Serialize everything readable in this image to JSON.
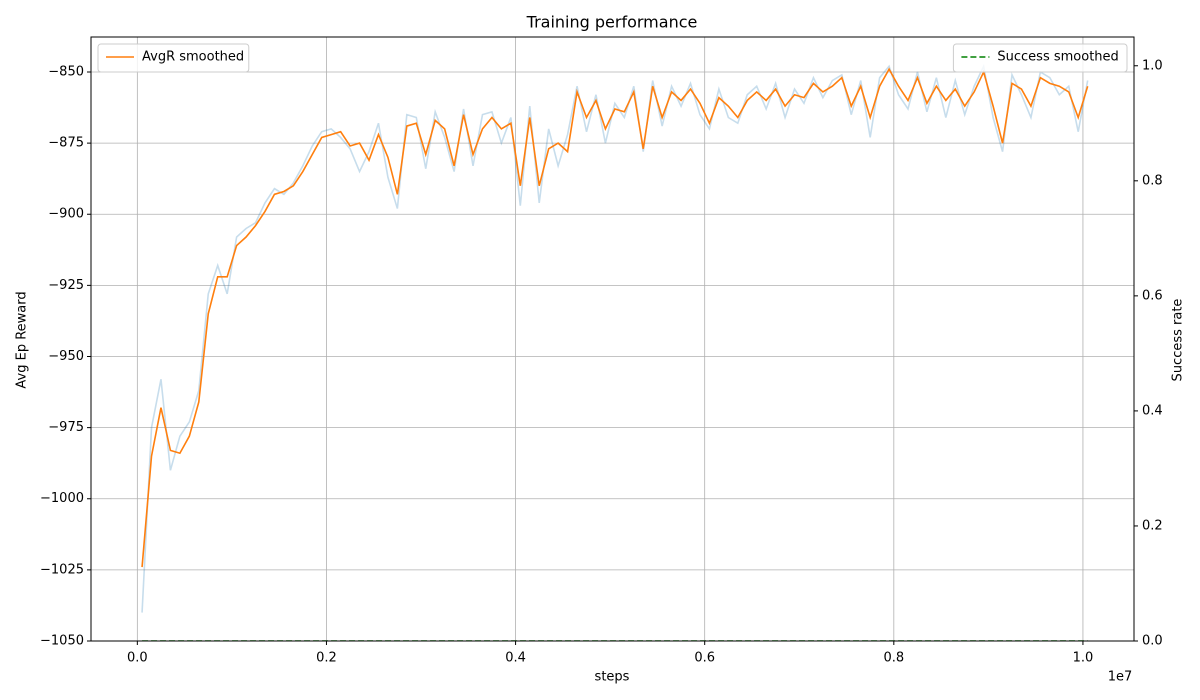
{
  "chart_data": {
    "type": "line",
    "title": "Training performance",
    "xlabel": "steps",
    "ylabel": "Avg Ep Reward",
    "y2label": "Success rate",
    "x_offset_label": "1e7",
    "x": [
      0.005,
      0.015,
      0.025,
      0.035,
      0.045,
      0.055,
      0.065,
      0.075,
      0.085,
      0.095,
      0.105,
      0.115,
      0.125,
      0.135,
      0.145,
      0.155,
      0.165,
      0.175,
      0.185,
      0.195,
      0.205,
      0.215,
      0.225,
      0.235,
      0.245,
      0.255,
      0.265,
      0.275,
      0.285,
      0.295,
      0.305,
      0.315,
      0.325,
      0.335,
      0.345,
      0.355,
      0.365,
      0.375,
      0.385,
      0.395,
      0.405,
      0.415,
      0.425,
      0.435,
      0.445,
      0.455,
      0.465,
      0.475,
      0.485,
      0.495,
      0.505,
      0.515,
      0.525,
      0.535,
      0.545,
      0.555,
      0.565,
      0.575,
      0.585,
      0.595,
      0.605,
      0.615,
      0.625,
      0.635,
      0.645,
      0.655,
      0.665,
      0.675,
      0.685,
      0.695,
      0.705,
      0.715,
      0.725,
      0.735,
      0.745,
      0.755,
      0.765,
      0.775,
      0.785,
      0.795,
      0.805,
      0.815,
      0.825,
      0.835,
      0.845,
      0.855,
      0.865,
      0.875,
      0.885,
      0.895,
      0.905,
      0.915,
      0.925,
      0.935,
      0.945,
      0.955,
      0.965,
      0.975,
      0.985,
      0.995,
      1.005
    ],
    "series": [
      {
        "color": "#1f77b4",
        "alpha": 0.25,
        "dash": false,
        "values": [
          -1040,
          -975,
          -958,
          -990,
          -978,
          -973,
          -962,
          -928,
          -918,
          -928,
          -908,
          -905,
          -903,
          -896,
          -891,
          -893,
          -889,
          -883,
          -876,
          -871,
          -870,
          -873,
          -877,
          -885,
          -878,
          -868,
          -887,
          -898,
          -865,
          -866,
          -884,
          -864,
          -873,
          -885,
          -863,
          -883,
          -865,
          -864,
          -875,
          -866,
          -897,
          -862,
          -896,
          -870,
          -883,
          -872,
          -855,
          -871,
          -858,
          -875,
          -861,
          -866,
          -855,
          -878,
          -853,
          -869,
          -855,
          -862,
          -854,
          -865,
          -870,
          -856,
          -866,
          -868,
          -858,
          -855,
          -863,
          -854,
          -866,
          -856,
          -861,
          -852,
          -859,
          -853,
          -851,
          -865,
          -853,
          -873,
          -852,
          -848,
          -858,
          -863,
          -850,
          -864,
          -852,
          -866,
          -853,
          -865,
          -855,
          -848,
          -866,
          -878,
          -851,
          -858,
          -866,
          -850,
          -852,
          -858,
          -855,
          -871,
          -853
        ]
      },
      {
        "name": "AvgR smoothed",
        "color": "#ff7f0e",
        "alpha": 1,
        "dash": false,
        "values": [
          -1024,
          -985,
          -968,
          -983,
          -984,
          -978,
          -966,
          -935,
          -922,
          -922,
          -911,
          -908,
          -904,
          -899,
          -893,
          -892,
          -890,
          -885,
          -879,
          -873,
          -872,
          -871,
          -876,
          -875,
          -881,
          -872,
          -880,
          -893,
          -869,
          -868,
          -879,
          -867,
          -870,
          -883,
          -865,
          -879,
          -870,
          -866,
          -870,
          -868,
          -890,
          -866,
          -890,
          -877,
          -875,
          -878,
          -857,
          -866,
          -860,
          -870,
          -863,
          -864,
          -857,
          -877,
          -855,
          -866,
          -857,
          -860,
          -856,
          -861,
          -868,
          -859,
          -862,
          -866,
          -860,
          -857,
          -860,
          -856,
          -862,
          -858,
          -859,
          -854,
          -857,
          -855,
          -852,
          -862,
          -855,
          -866,
          -855,
          -849,
          -855,
          -860,
          -852,
          -861,
          -855,
          -860,
          -856,
          -862,
          -857,
          -850,
          -862,
          -875,
          -854,
          -856,
          -862,
          -852,
          -854,
          -855,
          -857,
          -866,
          -855
        ]
      },
      {
        "name": "Success smoothed",
        "color": "#008000",
        "alpha": 1,
        "dash": true,
        "axis": "y2",
        "values": [
          0,
          0,
          0,
          0,
          0,
          0,
          0,
          0,
          0,
          0,
          0,
          0,
          0,
          0,
          0,
          0,
          0,
          0,
          0,
          0,
          0,
          0,
          0,
          0,
          0,
          0,
          0,
          0,
          0,
          0,
          0,
          0,
          0,
          0,
          0,
          0,
          0,
          0,
          0,
          0,
          0,
          0,
          0,
          0,
          0,
          0,
          0,
          0,
          0,
          0,
          0,
          0,
          0,
          0,
          0,
          0,
          0,
          0,
          0,
          0,
          0,
          0,
          0,
          0,
          0,
          0,
          0,
          0,
          0,
          0,
          0,
          0,
          0,
          0,
          0,
          0,
          0,
          0,
          0,
          0,
          0,
          0,
          0,
          0,
          0,
          0,
          0,
          0,
          0,
          0,
          0,
          0,
          0,
          0,
          0,
          0,
          0,
          0,
          0,
          0,
          0
        ]
      }
    ],
    "xlim": [
      -0.049,
      1.054
    ],
    "xticks": [
      {
        "value": 0,
        "label": "0.0"
      },
      0.2,
      0.4,
      0.6,
      0.8,
      {
        "value": 1,
        "label": "1.0"
      }
    ],
    "ylim": [
      -1050,
      -837.7
    ],
    "yticks": [
      {
        "value": -1050,
        "label": "−1050"
      },
      {
        "value": -1025,
        "label": "−1025"
      },
      {
        "value": -1000,
        "label": "−1000"
      },
      {
        "value": -975,
        "label": "−975"
      },
      {
        "value": -950,
        "label": "−950"
      },
      {
        "value": -925,
        "label": "−925"
      },
      {
        "value": -900,
        "label": "−900"
      },
      {
        "value": -875,
        "label": "−875"
      },
      {
        "value": -850,
        "label": "−850"
      }
    ],
    "y2lim": [
      0,
      1.05
    ],
    "y2ticks": [
      {
        "value": 0,
        "label": "0.0"
      },
      0.2,
      0.4,
      0.6,
      0.8,
      {
        "value": 1,
        "label": "1.0"
      }
    ],
    "grid": true,
    "legend": {
      "y": "upper left",
      "y2": "upper right"
    }
  }
}
